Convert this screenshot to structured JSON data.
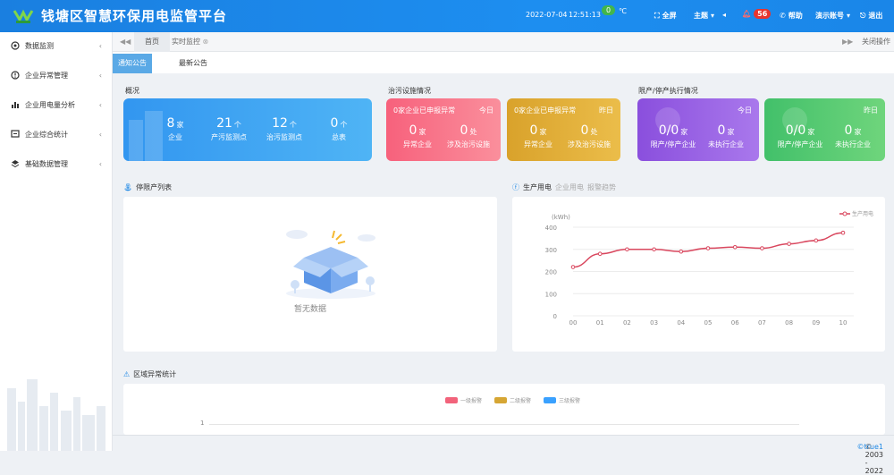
{
  "header": {
    "title": "钱塘区智慧环保用电监管平台",
    "date": "2022-07-04",
    "time": "12:51:13",
    "temperature": "0",
    "temp_unit": "℃",
    "fullscreen": "全屏",
    "theme": "主题",
    "alarm_count": "56",
    "help": "帮助",
    "demo_account": "演示账号",
    "logout": "退出"
  },
  "sidebar": {
    "items": [
      {
        "label": "数据监测",
        "icon": "monitor-icon"
      },
      {
        "label": "企业异常管理",
        "icon": "alert-icon"
      },
      {
        "label": "企业用电量分析",
        "icon": "bar-chart-icon"
      },
      {
        "label": "企业综合统计",
        "icon": "stats-icon"
      },
      {
        "label": "基础数据管理",
        "icon": "layers-icon"
      }
    ]
  },
  "tabs": {
    "home": "首页",
    "realtime": "实时监控",
    "close_ops": "关闭操作"
  },
  "subtabs": {
    "notice": "通知公告",
    "latest": "最新公告"
  },
  "overview": {
    "title": "概况",
    "stats": [
      {
        "num": "8",
        "unit": "家",
        "label": "企业"
      },
      {
        "num": "21",
        "unit": "个",
        "label": "产污监测点"
      },
      {
        "num": "12",
        "unit": "个",
        "label": "治污监测点"
      },
      {
        "num": "0",
        "unit": "个",
        "label": "总表"
      }
    ]
  },
  "pollution": {
    "title": "治污设施情况",
    "today": {
      "title": "0家企业已申报异常",
      "tag": "今日",
      "stats": [
        {
          "num": "0",
          "unit": "家",
          "label": "异常企业"
        },
        {
          "num": "0",
          "unit": "处",
          "label": "涉及治污设施"
        }
      ]
    },
    "yesterday": {
      "title": "0家企业已申报异常",
      "tag": "昨日",
      "stats": [
        {
          "num": "0",
          "unit": "家",
          "label": "异常企业"
        },
        {
          "num": "0",
          "unit": "处",
          "label": "涉及治污设施"
        }
      ]
    }
  },
  "restriction": {
    "title": "限产/停产执行情况",
    "today": {
      "tag": "今日",
      "stats": [
        {
          "num": "0/0",
          "unit": "家",
          "label": "限产/停产企业"
        },
        {
          "num": "0",
          "unit": "家",
          "label": "未执行企业"
        }
      ]
    },
    "yesterday": {
      "tag": "昨日",
      "stats": [
        {
          "num": "0/0",
          "unit": "家",
          "label": "限产/停产企业"
        },
        {
          "num": "0",
          "unit": "家",
          "label": "未执行企业"
        }
      ]
    }
  },
  "restricted_list": {
    "title": "停限产列表",
    "empty_text": "暂无数据"
  },
  "power": {
    "tabs": [
      "生产用电",
      "企业用电",
      "报警趋势"
    ],
    "unit_label": "(kWh)",
    "legend": "生产用电"
  },
  "region": {
    "title": "区域异常统计",
    "legend": [
      "一级报警",
      "二级报警",
      "三级报警"
    ],
    "legend_colors": [
      "#f2637b",
      "#d6a634",
      "#3aa1ff"
    ],
    "y_tick": "1"
  },
  "footer": {
    "copyright": "© 2003 - 2022 ",
    "brand": "©true1"
  },
  "chart_data": {
    "type": "line",
    "categories": [
      "00",
      "01",
      "02",
      "03",
      "04",
      "05",
      "06",
      "07",
      "08",
      "09",
      "10"
    ],
    "series": [
      {
        "name": "生产用电",
        "values": [
          220,
          280,
          300,
          300,
          290,
          305,
          310,
          305,
          325,
          340,
          375
        ]
      }
    ],
    "ylabel": "(kWh)",
    "yticks": [
      0,
      100,
      200,
      300,
      400
    ],
    "ylim": [
      0,
      400
    ],
    "color": "#d9475e",
    "legend_position": "top-right"
  }
}
